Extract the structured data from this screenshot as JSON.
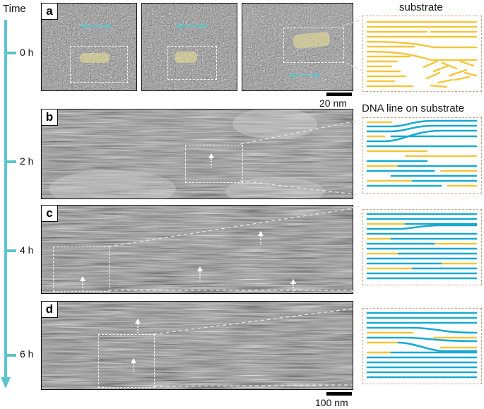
{
  "axis": {
    "title": "Time",
    "ticks": [
      "0 h",
      "2 h",
      "4 h",
      "6 h"
    ]
  },
  "panels": [
    {
      "letter": "a"
    },
    {
      "letter": "b"
    },
    {
      "letter": "c"
    },
    {
      "letter": "d"
    }
  ],
  "scale_bars": {
    "top": "20 nm",
    "bottom": "100 nm"
  },
  "schematic_titles": {
    "top": "substrate",
    "second": "DNA line on substrate"
  },
  "colors": {
    "axis": "#5ec3cd",
    "dna_line": "#19a9d1",
    "substrate": "#f3c63c",
    "frame": "#c9a487"
  }
}
